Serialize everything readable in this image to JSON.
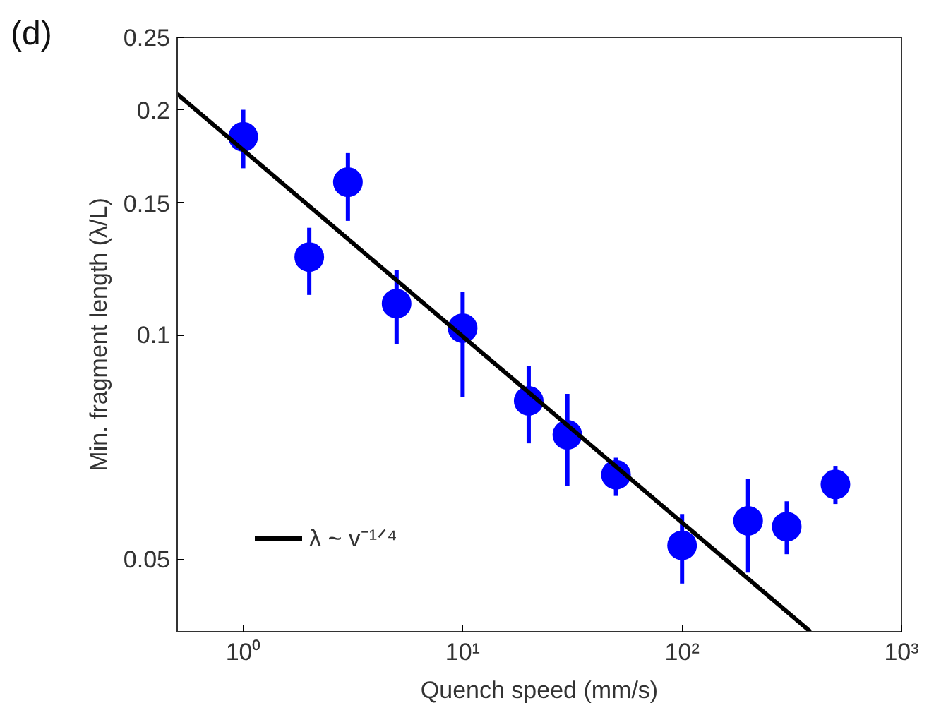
{
  "chart_data": {
    "type": "scatter",
    "title": "(d)",
    "xlabel": "Quench speed (mm/s)",
    "ylabel": "Min. fragment length (λ/L)",
    "log": "xy",
    "xlim": [
      0.5,
      1000
    ],
    "ylim": [
      0.04,
      0.25
    ],
    "xticks": [
      {
        "value": 1,
        "label": "10⁰"
      },
      {
        "value": 10,
        "label": "10¹"
      },
      {
        "value": 100,
        "label": "10²"
      },
      {
        "value": 1000,
        "label": "10³"
      }
    ],
    "yticks": [
      0.05,
      0.1,
      0.15,
      0.2,
      0.25
    ],
    "grid": false,
    "legend": "bottom left",
    "marker": "circle",
    "series": [
      {
        "color": "#0000ff",
        "x": [
          1,
          2,
          3,
          5,
          10,
          20,
          30,
          50,
          100,
          200,
          300,
          500
        ],
        "values": [
          0.184,
          0.127,
          0.16,
          0.11,
          0.102,
          0.0815,
          0.0734,
          0.0649,
          0.0522,
          0.0563,
          0.0553,
          0.063
        ],
        "errors": [
          [
            0.167,
            0.2
          ],
          [
            0.113,
            0.139
          ],
          [
            0.142,
            0.175
          ],
          [
            0.097,
            0.122
          ],
          [
            0.0825,
            0.114
          ],
          [
            0.0715,
            0.0908
          ],
          [
            0.0627,
            0.0833
          ],
          [
            0.0608,
            0.0684
          ],
          [
            0.0464,
            0.0575
          ],
          [
            0.048,
            0.0641
          ],
          [
            0.0508,
            0.0598
          ],
          [
            0.0593,
            0.0667
          ]
        ]
      },
      {
        "type": "line",
        "name": "λ ~ v⁻¹ᐟ⁴",
        "color": "#000000",
        "marker": "none",
        "line_style": "solid",
        "x": [
          0.5,
          385
        ],
        "values": [
          0.21,
          0.04
        ]
      }
    ]
  }
}
